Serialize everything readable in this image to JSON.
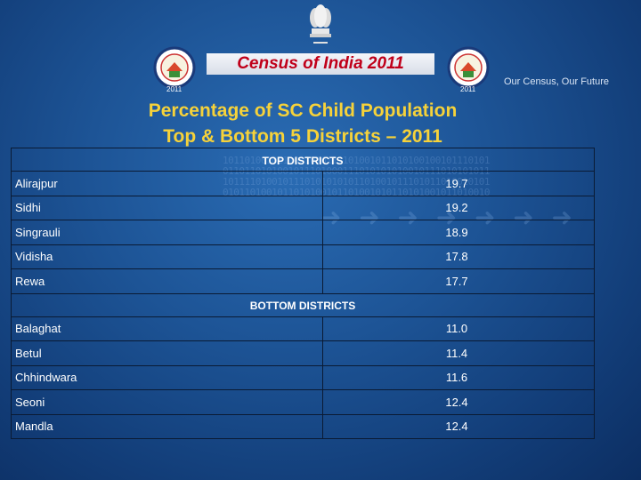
{
  "header": {
    "census_title": "Census of India 2011",
    "tagline": "Our Census,  Our Future",
    "logo_year": "2011"
  },
  "title": {
    "line1": "Percentage of SC Child Population",
    "line2": "Top & Bottom 5 Districts – 2011"
  },
  "table": {
    "top_header": "TOP DISTRICTS",
    "top_rows": [
      {
        "district": "Alirajpur",
        "value": "19.7"
      },
      {
        "district": "Sidhi",
        "value": "19.2"
      },
      {
        "district": "Singrauli",
        "value": "18.9"
      },
      {
        "district": "Vidisha",
        "value": "17.8"
      },
      {
        "district": "Rewa",
        "value": "17.7"
      }
    ],
    "bottom_header": "BOTTOM DISTRICTS",
    "bottom_rows": [
      {
        "district": "Balaghat",
        "value": "11.0"
      },
      {
        "district": "Betul",
        "value": "11.4"
      },
      {
        "district": "Chhindwara",
        "value": "11.6"
      },
      {
        "district": "Seoni",
        "value": "12.4"
      },
      {
        "district": "Mandla",
        "value": "12.4"
      }
    ]
  },
  "colors": {
    "background": "#1d5496",
    "title_yellow": "#f6d23a",
    "census_red": "#c0001a"
  }
}
